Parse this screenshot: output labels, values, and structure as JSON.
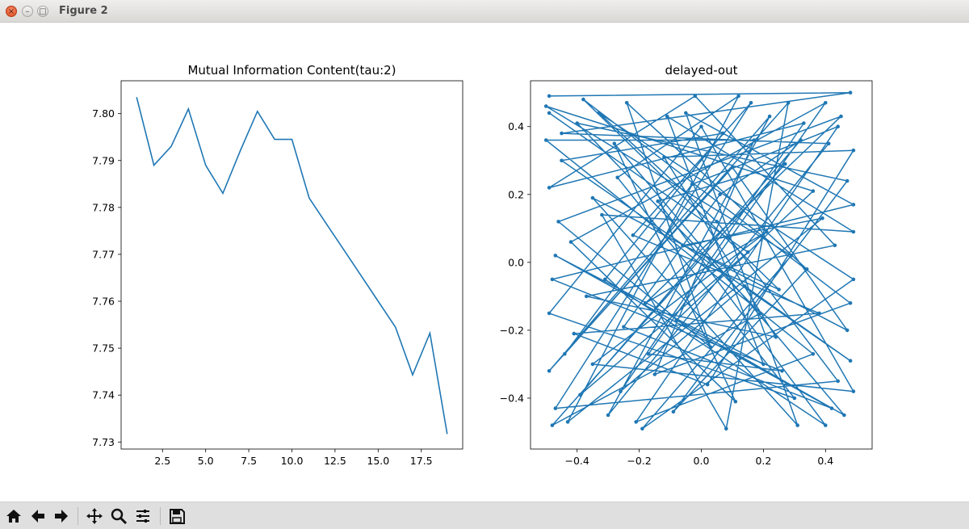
{
  "window": {
    "title": "Figure 2"
  },
  "toolbar": {
    "buttons": [
      "home-icon",
      "back-icon",
      "forward-icon",
      "pan-icon",
      "zoom-icon",
      "subplots-icon",
      "save-icon"
    ]
  },
  "colors": {
    "line": "#1f77b4"
  },
  "chart_data": [
    {
      "type": "line",
      "title": "Mutual Information Content(tau:2)",
      "xlabel": "",
      "ylabel": "",
      "x": [
        1,
        2,
        3,
        4,
        5,
        6,
        7,
        8,
        9,
        10,
        11,
        12,
        13,
        14,
        15,
        16,
        17,
        18,
        19
      ],
      "values": [
        7.8035,
        7.789,
        7.793,
        7.801,
        7.789,
        7.783,
        7.792,
        7.8005,
        7.7945,
        7.7945,
        7.782,
        7.7765,
        7.771,
        7.7655,
        7.76,
        7.7545,
        7.7443,
        7.7532,
        7.7317
      ],
      "xlim": [
        0.1,
        19.9
      ],
      "ylim": [
        7.7285,
        7.807
      ],
      "xticks": [
        2.5,
        5.0,
        7.5,
        10.0,
        12.5,
        15.0,
        17.5
      ],
      "xticklabels": [
        "2.5",
        "5.0",
        "7.5",
        "10.0",
        "12.5",
        "15.0",
        "17.5"
      ],
      "yticks": [
        7.73,
        7.74,
        7.75,
        7.76,
        7.77,
        7.78,
        7.79,
        7.8
      ],
      "yticklabels": [
        "7.73",
        "7.74",
        "7.75",
        "7.76",
        "7.77",
        "7.78",
        "7.79",
        "7.80"
      ],
      "grid": false
    },
    {
      "type": "scatter",
      "title": "delayed-out",
      "xlabel": "",
      "ylabel": "",
      "marker": "point-connected",
      "xlim": [
        -0.55,
        0.55
      ],
      "ylim": [
        -0.55,
        0.535
      ],
      "xticks": [
        -0.4,
        -0.2,
        0.0,
        0.2,
        0.4
      ],
      "xticklabels": [
        "−0.4",
        "−0.2",
        "0.0",
        "0.2",
        "0.4"
      ],
      "yticks": [
        -0.4,
        -0.2,
        0.0,
        0.2,
        0.4
      ],
      "yticklabels": [
        "−0.4",
        "−0.2",
        "0.0",
        "0.2",
        "0.4"
      ],
      "grid": false,
      "points": [
        [
          -0.49,
          0.49
        ],
        [
          0.48,
          0.5
        ],
        [
          -0.45,
          0.38
        ],
        [
          0.41,
          0.35
        ],
        [
          -0.3,
          -0.45
        ],
        [
          0.22,
          0.43
        ],
        [
          -0.49,
          -0.32
        ],
        [
          0.1,
          0.28
        ],
        [
          0.47,
          -0.2
        ],
        [
          -0.35,
          0.19
        ],
        [
          0.31,
          -0.48
        ],
        [
          -0.05,
          0.44
        ],
        [
          0.49,
          0.17
        ],
        [
          -0.48,
          -0.05
        ],
        [
          0.26,
          -0.32
        ],
        [
          -0.17,
          -0.27
        ],
        [
          0.4,
          0.47
        ],
        [
          -0.42,
          0.06
        ],
        [
          0.11,
          -0.41
        ],
        [
          -0.28,
          0.35
        ],
        [
          0.46,
          -0.45
        ],
        [
          -0.08,
          -0.17
        ],
        [
          0.36,
          0.21
        ],
        [
          -0.5,
          0.46
        ],
        [
          0.29,
          0.02
        ],
        [
          -0.19,
          -0.49
        ],
        [
          0.49,
          -0.05
        ],
        [
          -0.33,
          0.44
        ],
        [
          0.05,
          0.12
        ],
        [
          0.44,
          -0.35
        ],
        [
          -0.47,
          -0.43
        ],
        [
          0.16,
          0.47
        ],
        [
          -0.22,
          0.08
        ],
        [
          0.38,
          -0.15
        ],
        [
          -0.41,
          -0.21
        ],
        [
          0.02,
          -0.36
        ],
        [
          0.49,
          0.33
        ],
        [
          -0.12,
          0.31
        ],
        [
          0.24,
          -0.22
        ],
        [
          -0.37,
          -0.1
        ],
        [
          0.43,
          0.05
        ],
        [
          -0.02,
          0.49
        ],
        [
          -0.49,
          0.22
        ],
        [
          0.33,
          0.41
        ],
        [
          -0.26,
          -0.38
        ],
        [
          0.14,
          -0.07
        ],
        [
          0.48,
          -0.29
        ],
        [
          -0.45,
          0.3
        ],
        [
          0.07,
          0.38
        ],
        [
          -0.31,
          -0.05
        ],
        [
          0.4,
          -0.48
        ],
        [
          -0.14,
          0.18
        ],
        [
          0.27,
          0.29
        ],
        [
          -0.48,
          -0.48
        ],
        [
          0.19,
          -0.15
        ],
        [
          -0.4,
          0.41
        ],
        [
          0.47,
          0.24
        ],
        [
          -0.09,
          -0.44
        ],
        [
          0.34,
          -0.02
        ],
        [
          -0.24,
          0.47
        ],
        [
          0.03,
          -0.25
        ],
        [
          -0.46,
          0.12
        ],
        [
          0.45,
          0.43
        ],
        [
          -0.18,
          -0.12
        ],
        [
          0.21,
          0.09
        ],
        [
          -0.35,
          -0.3
        ],
        [
          0.49,
          -0.38
        ],
        [
          0.0,
          0.4
        ],
        [
          -0.49,
          -0.15
        ],
        [
          0.3,
          -0.4
        ],
        [
          -0.27,
          0.25
        ],
        [
          0.12,
          0.49
        ],
        [
          -0.43,
          -0.47
        ],
        [
          0.39,
          0.13
        ],
        [
          -0.06,
          0.05
        ],
        [
          0.25,
          -0.08
        ],
        [
          -0.38,
          0.48
        ],
        [
          0.48,
          -0.12
        ],
        [
          -0.15,
          -0.33
        ],
        [
          0.17,
          0.36
        ],
        [
          -0.5,
          0.36
        ],
        [
          0.36,
          -0.27
        ],
        [
          -0.21,
          -0.47
        ],
        [
          0.44,
          0.4
        ],
        [
          -0.03,
          0.23
        ],
        [
          -0.44,
          -0.27
        ],
        [
          0.28,
          0.47
        ],
        [
          0.08,
          -0.49
        ],
        [
          -0.32,
          0.14
        ],
        [
          0.49,
          0.09
        ],
        [
          -0.11,
          0.43
        ],
        [
          0.2,
          -0.3
        ],
        [
          -0.47,
          0.02
        ],
        [
          0.42,
          -0.43
        ],
        [
          -0.25,
          -0.19
        ],
        [
          0.06,
          0.2
        ],
        [
          0.32,
          0.36
        ],
        [
          -0.39,
          -0.39
        ],
        [
          0.15,
          0.03
        ],
        [
          -0.49,
          0.44
        ]
      ]
    }
  ]
}
